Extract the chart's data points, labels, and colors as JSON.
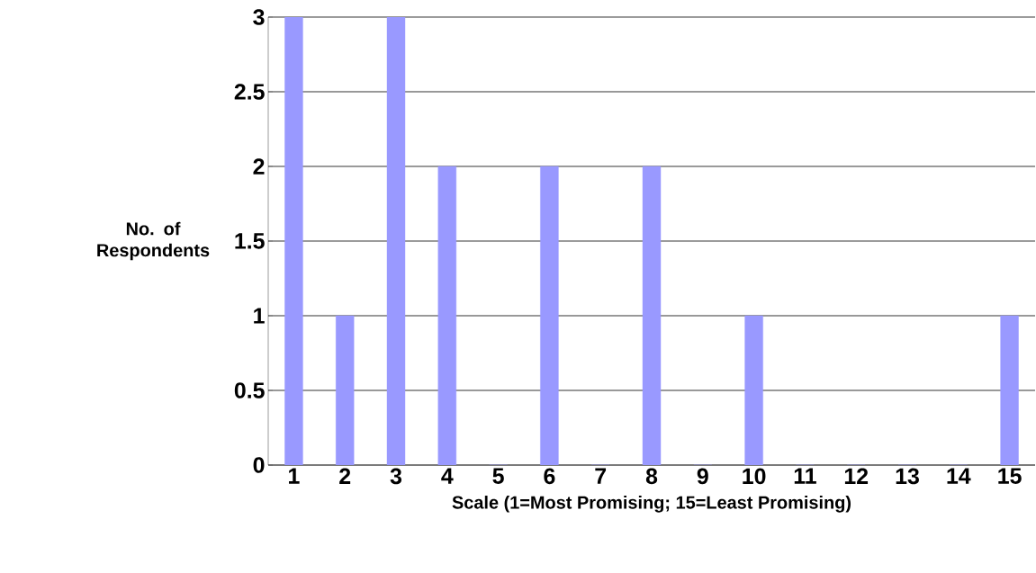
{
  "chart_data": {
    "type": "bar",
    "xlabel": "Scale (1=Most Promising; 15=Least Promising)",
    "ylabel": "No. of Respondents",
    "categories": [
      "1",
      "2",
      "3",
      "4",
      "5",
      "6",
      "7",
      "8",
      "9",
      "10",
      "11",
      "12",
      "13",
      "14",
      "15"
    ],
    "values": [
      3,
      1,
      3,
      2,
      0,
      2,
      0,
      2,
      0,
      1,
      0,
      0,
      0,
      0,
      1
    ],
    "color": "#9999ff",
    "ylim": [
      0,
      3
    ],
    "yticks": [
      0,
      0.5,
      1,
      1.5,
      2,
      2.5,
      3
    ],
    "grid": "y"
  }
}
